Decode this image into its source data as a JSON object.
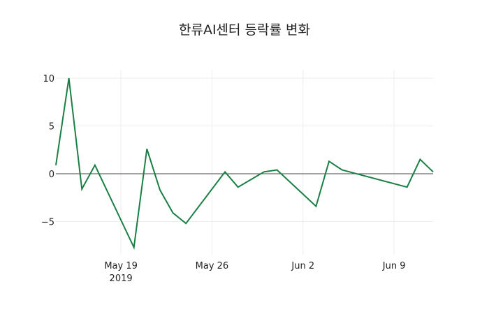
{
  "chart_data": {
    "type": "line",
    "title": "한류AI센터 등락률 변화",
    "xlabel": "",
    "ylabel": "",
    "x": [
      "2019-05-14",
      "2019-05-15",
      "2019-05-16",
      "2019-05-17",
      "2019-05-20",
      "2019-05-21",
      "2019-05-22",
      "2019-05-23",
      "2019-05-24",
      "2019-05-27",
      "2019-05-28",
      "2019-05-30",
      "2019-05-31",
      "2019-06-03",
      "2019-06-04",
      "2019-06-05",
      "2019-06-10",
      "2019-06-11",
      "2019-06-12"
    ],
    "series": [
      {
        "name": "등락률",
        "color": "#1a7f44",
        "values": [
          0.9,
          10.0,
          -1.6,
          0.9,
          -7.7,
          2.6,
          -1.7,
          -4.1,
          -5.2,
          0.2,
          -1.4,
          0.2,
          0.4,
          -3.4,
          1.3,
          0.4,
          -1.4,
          1.5,
          0.2
        ]
      }
    ],
    "ylim": [
      -8.4,
      10.9
    ],
    "yticks": [
      10,
      5,
      0,
      -5
    ],
    "ytick_labels": [
      "10",
      "5",
      "0",
      "−5"
    ],
    "xticks": [
      "2019-05-19",
      "2019-05-26",
      "2019-06-02",
      "2019-06-09"
    ],
    "xtick_labels": [
      "May 19",
      "May 26",
      "Jun 2",
      "Jun 9"
    ],
    "xtick_year_label": "2019",
    "grid": true,
    "legend": false
  }
}
